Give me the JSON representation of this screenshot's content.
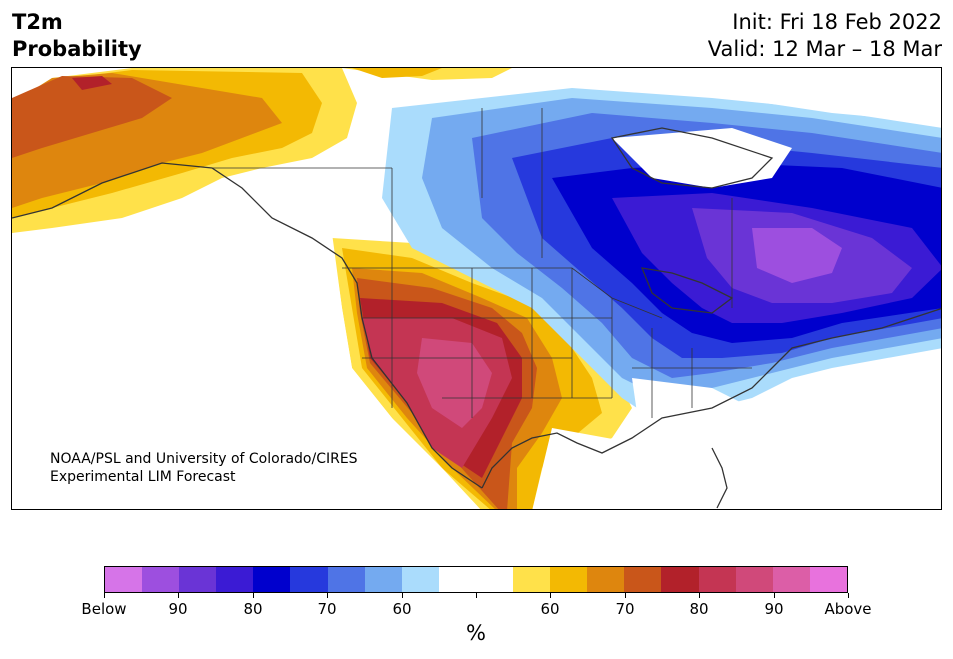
{
  "title": {
    "left_line1": "T2m",
    "left_line2": "Probability",
    "right_line1": "Init: Fri 18 Feb 2022",
    "right_line2": "Valid: 12 Mar – 18 Mar"
  },
  "credit": {
    "line1": "NOAA/PSL and University of Colorado/CIRES",
    "line2": "Experimental LIM Forecast"
  },
  "colorbar": {
    "colors": [
      "#d674e8",
      "#9d4fdf",
      "#6a34d6",
      "#3b1bd4",
      "#0000cd",
      "#2639dd",
      "#4f74e6",
      "#74aaf0",
      "#aadcfc",
      "#ffffff",
      "#ffffff",
      "#ffe14a",
      "#f3b903",
      "#de860e",
      "#c9561a",
      "#b2212a",
      "#c43553",
      "#d0497a",
      "#dc5ea7",
      "#e872dd"
    ],
    "tick_labels": [
      "Below",
      "90",
      "80",
      "70",
      "60",
      "",
      "60",
      "70",
      "80",
      "90",
      "Above"
    ],
    "unit": "%"
  },
  "legend_colors": {
    "below_strong": "#3b1bd4",
    "above_strong": "#c43553",
    "neutral": "#ffffff"
  }
}
